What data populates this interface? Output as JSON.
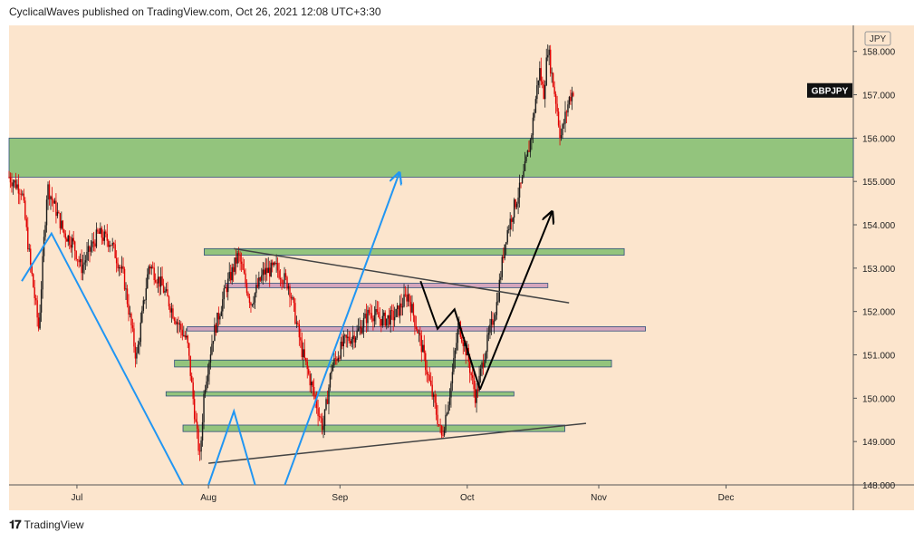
{
  "header": {
    "publisher_line": "CyclicalWaves published on TradingView.com, Oct 26, 2021 12:08 UTC+3:30"
  },
  "footer": {
    "brand": "TradingView",
    "logo_icon": "tradingview-logo-icon"
  },
  "colors": {
    "plot_bg": "#fce5cd",
    "candle_up": "#1a1a1a",
    "candle_down": "#e00000",
    "zone_green": "#93c47d",
    "zone_pink": "#d5a6bd",
    "trend_gray": "#444444",
    "arrow_blue": "#2196f3",
    "arrow_black": "#000000"
  },
  "chart_data": {
    "type": "candlestick",
    "symbol": "GBPJPY",
    "currency": "JPY",
    "x_ticks": [
      "Jul",
      "Aug",
      "Sep",
      "Oct",
      "Nov",
      "Dec"
    ],
    "y_ticks": [
      "148.000",
      "149.000",
      "150.000",
      "151.000",
      "152.000",
      "153.000",
      "154.000",
      "155.000",
      "156.000",
      "157.000",
      "158.000"
    ],
    "ylim": [
      148.0,
      158.6
    ],
    "last_price": 157.1,
    "price_path": [
      [
        "2021-06-15",
        155.1
      ],
      [
        "2021-06-18",
        154.8
      ],
      [
        "2021-06-20",
        153.1
      ],
      [
        "2021-06-22",
        151.6
      ],
      [
        "2021-06-24",
        154.9
      ],
      [
        "2021-06-28",
        153.8
      ],
      [
        "2021-06-30",
        153.6
      ],
      [
        "2021-07-02",
        153.0
      ],
      [
        "2021-07-06",
        153.8
      ],
      [
        "2021-07-09",
        153.6
      ],
      [
        "2021-07-12",
        152.8
      ],
      [
        "2021-07-15",
        150.9
      ],
      [
        "2021-07-18",
        153.1
      ],
      [
        "2021-07-21",
        152.6
      ],
      [
        "2021-07-24",
        151.9
      ],
      [
        "2021-07-27",
        151.3
      ],
      [
        "2021-07-29",
        149.4
      ],
      [
        "2021-07-30",
        148.6
      ],
      [
        "2021-07-31",
        150.2
      ],
      [
        "2021-08-02",
        151.4
      ],
      [
        "2021-08-05",
        152.5
      ],
      [
        "2021-08-08",
        153.3
      ],
      [
        "2021-08-11",
        152.2
      ],
      [
        "2021-08-14",
        152.9
      ],
      [
        "2021-08-17",
        153.0
      ],
      [
        "2021-08-20",
        152.6
      ],
      [
        "2021-08-23",
        151.1
      ],
      [
        "2021-08-25",
        150.4
      ],
      [
        "2021-08-28",
        149.3
      ],
      [
        "2021-08-30",
        150.7
      ],
      [
        "2021-09-02",
        151.3
      ],
      [
        "2021-09-05",
        151.5
      ],
      [
        "2021-09-08",
        152.0
      ],
      [
        "2021-09-11",
        151.8
      ],
      [
        "2021-09-14",
        151.9
      ],
      [
        "2021-09-17",
        152.4
      ],
      [
        "2021-09-20",
        151.3
      ],
      [
        "2021-09-22",
        150.4
      ],
      [
        "2021-09-25",
        149.1
      ],
      [
        "2021-09-27",
        150.2
      ],
      [
        "2021-09-29",
        151.7
      ],
      [
        "2021-10-01",
        151.0
      ],
      [
        "2021-10-03",
        150.0
      ],
      [
        "2021-10-05",
        151.0
      ],
      [
        "2021-10-08",
        152.2
      ],
      [
        "2021-10-10",
        153.7
      ],
      [
        "2021-10-12",
        154.4
      ],
      [
        "2021-10-14",
        155.0
      ],
      [
        "2021-10-16",
        156.0
      ],
      [
        "2021-10-18",
        157.6
      ],
      [
        "2021-10-19",
        157.0
      ],
      [
        "2021-10-20",
        158.1
      ],
      [
        "2021-10-21",
        157.4
      ],
      [
        "2021-10-22",
        156.8
      ],
      [
        "2021-10-23",
        156.0
      ],
      [
        "2021-10-25",
        156.9
      ],
      [
        "2021-10-26",
        157.1
      ]
    ],
    "zones": [
      {
        "style": "green",
        "from": "2021-06-15",
        "to": "2021-12-31",
        "low": 155.1,
        "high": 156.0
      },
      {
        "style": "green",
        "from": "2021-07-31",
        "to": "2021-11-07",
        "low": 153.3,
        "high": 153.45
      },
      {
        "style": "pink",
        "from": "2021-08-05",
        "to": "2021-10-20",
        "low": 152.55,
        "high": 152.65
      },
      {
        "style": "pink",
        "from": "2021-07-27",
        "to": "2021-11-12",
        "low": 151.55,
        "high": 151.65
      },
      {
        "style": "green",
        "from": "2021-07-24",
        "to": "2021-11-04",
        "low": 150.72,
        "high": 150.88
      },
      {
        "style": "green",
        "from": "2021-07-22",
        "to": "2021-10-12",
        "low": 150.05,
        "high": 150.15
      },
      {
        "style": "green",
        "from": "2021-07-26",
        "to": "2021-10-24",
        "low": 149.23,
        "high": 149.38
      }
    ],
    "lines": [
      {
        "style": "gray",
        "points": [
          [
            "2021-08-07",
            153.45
          ],
          [
            "2021-10-25",
            152.2
          ]
        ]
      },
      {
        "style": "gray",
        "points": [
          [
            "2021-08-01",
            148.5
          ],
          [
            "2021-10-29",
            149.42
          ]
        ]
      },
      {
        "style": "blue",
        "points": [
          [
            "2021-06-18",
            152.7
          ],
          [
            "2021-06-25",
            153.8
          ],
          [
            "2021-07-26",
            148.0
          ]
        ]
      },
      {
        "style": "blue",
        "points": [
          [
            "2021-08-01",
            148.0
          ],
          [
            "2021-08-07",
            149.7
          ],
          [
            "2021-08-12",
            148.0
          ]
        ]
      },
      {
        "style": "blue",
        "arrow": true,
        "points": [
          [
            "2021-08-19",
            148.0
          ],
          [
            "2021-09-15",
            155.2
          ]
        ]
      },
      {
        "style": "black",
        "points": [
          [
            "2021-09-20",
            152.7
          ],
          [
            "2021-09-24",
            151.6
          ],
          [
            "2021-09-28",
            152.05
          ],
          [
            "2021-10-04",
            150.2
          ]
        ]
      },
      {
        "style": "black",
        "arrow": true,
        "points": [
          [
            "2021-10-04",
            150.2
          ],
          [
            "2021-10-21",
            154.3
          ]
        ]
      }
    ]
  }
}
